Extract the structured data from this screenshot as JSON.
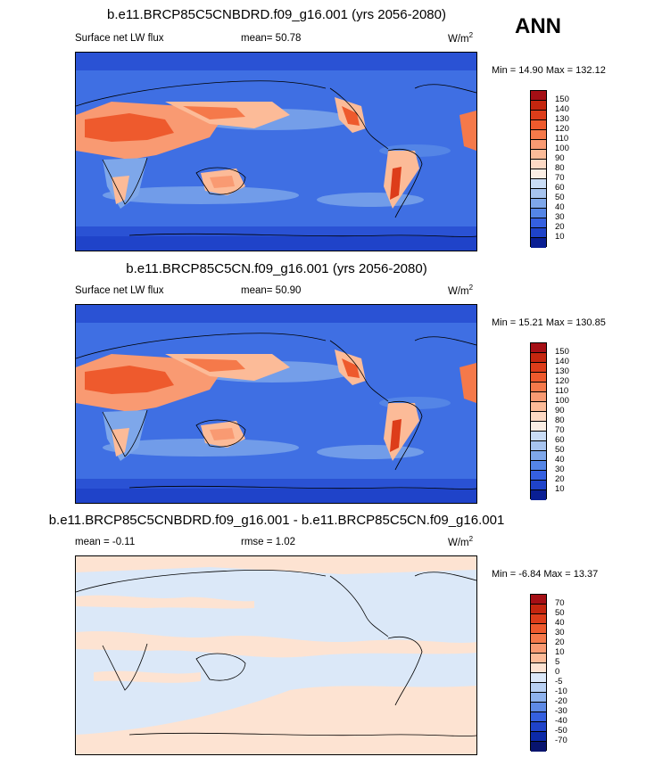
{
  "season": "ANN",
  "panels": [
    {
      "title": "b.e11.BRCP85C5CNBDRD.f09_g16.001 (yrs 2056-2080)",
      "variable": "Surface net LW flux",
      "mean_label": "mean=  50.78",
      "units_base": "W/m",
      "units_exp": "2",
      "minmax": "Min =  14.90 Max = 132.12"
    },
    {
      "title": "b.e11.BRCP85C5CN.f09_g16.001 (yrs 2056-2080)",
      "variable": "Surface net LW flux",
      "mean_label": "mean=  50.90",
      "units_base": "W/m",
      "units_exp": "2",
      "minmax": "Min =  15.21 Max = 130.85"
    },
    {
      "title": "b.e11.BRCP85C5CNBDRD.f09_g16.001 - b.e11.BRCP85C5CN.f09_g16.001",
      "mean_label": "mean =  -0.11",
      "rmse_label": "rmse =   1.02",
      "units_base": "W/m",
      "units_exp": "2",
      "minmax": "Min =  -6.84 Max =  13.37"
    }
  ],
  "colorbar_abs": {
    "labels": [
      "150",
      "140",
      "130",
      "120",
      "110",
      "100",
      "90",
      "80",
      "70",
      "60",
      "50",
      "40",
      "30",
      "20",
      "10"
    ],
    "colors": [
      "#a50f15",
      "#c4260f",
      "#dd3d1a",
      "#ee5a2d",
      "#f5794a",
      "#f99a72",
      "#fcbb98",
      "#fdd9c4",
      "#fbeee4",
      "#c9dcf5",
      "#a7c4ef",
      "#7ea7ea",
      "#5485e6",
      "#3560e0",
      "#1f43c9",
      "#0a1f94"
    ]
  },
  "colorbar_diff": {
    "labels": [
      "70",
      "50",
      "40",
      "30",
      "20",
      "10",
      "5",
      "0",
      "-5",
      "-10",
      "-20",
      "-30",
      "-40",
      "-50",
      "-70"
    ],
    "colors": [
      "#a50f15",
      "#c4260f",
      "#dd3d1a",
      "#ee5a2d",
      "#f5794a",
      "#f99a72",
      "#fcbb98",
      "#fde3d2",
      "#dbe8f8",
      "#b8d0f2",
      "#8eb2ec",
      "#5e8ae5",
      "#3560e0",
      "#1f43c9",
      "#0c2aa8",
      "#08146e"
    ]
  }
}
